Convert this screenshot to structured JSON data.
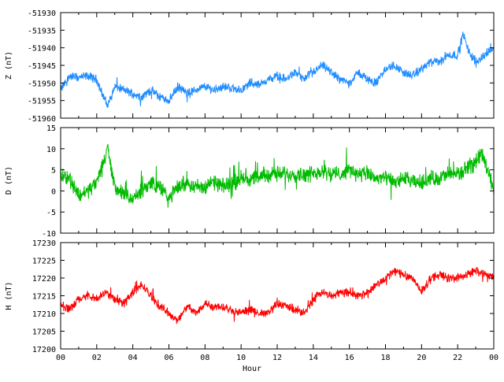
{
  "chart_data": {
    "type": "line",
    "xlabel": "Hour",
    "x_tick_labels": [
      "00",
      "02",
      "04",
      "06",
      "08",
      "10",
      "12",
      "14",
      "16",
      "18",
      "20",
      "22",
      "00"
    ],
    "xlim": [
      0,
      24
    ],
    "panels": [
      {
        "name": "Z",
        "ylabel": "Z (nT)",
        "ylim": [
          -51960,
          -51930
        ],
        "yticks": [
          -51960,
          -51955,
          -51950,
          -51945,
          -51940,
          -51935,
          -51930
        ],
        "color": "#1e8cff",
        "series": {
          "x": [
            0,
            0.5,
            1,
            1.5,
            2,
            2.3,
            2.6,
            3,
            3.5,
            4,
            4.5,
            5,
            5.5,
            6,
            6.5,
            7,
            7.5,
            8,
            8.5,
            9,
            9.5,
            10,
            10.5,
            11,
            11.5,
            12,
            12.5,
            13,
            13.5,
            14,
            14.5,
            15,
            15.5,
            16,
            16.5,
            17,
            17.5,
            18,
            18.5,
            19,
            19.5,
            20,
            20.5,
            21,
            21.5,
            22,
            22.3,
            22.6,
            23,
            23.5,
            24
          ],
          "values": [
            -51952,
            -51948,
            -51948.5,
            -51948,
            -51949,
            -51953,
            -51956.5,
            -51951,
            -51952,
            -51953,
            -51954,
            -51952,
            -51954,
            -51955,
            -51951,
            -51953,
            -51952,
            -51951,
            -51952,
            -51951,
            -51951.5,
            -51952,
            -51950,
            -51950.5,
            -51949,
            -51948,
            -51949,
            -51947,
            -51949,
            -51947,
            -51945,
            -51947,
            -51949,
            -51950,
            -51947,
            -51949,
            -51950,
            -51946,
            -51945,
            -51947,
            -51948,
            -51946,
            -51944,
            -51944,
            -51942,
            -51942,
            -51936,
            -51941,
            -51944,
            -51942,
            -51940
          ]
        }
      },
      {
        "name": "D",
        "ylabel": "D (nT)",
        "ylim": [
          -10,
          15
        ],
        "yticks": [
          -10,
          -5,
          0,
          5,
          10,
          15
        ],
        "color": "#00bb00",
        "series": {
          "x": [
            0,
            0.5,
            1,
            1.5,
            2,
            2.3,
            2.6,
            3,
            3.5,
            4,
            4.5,
            5,
            5.5,
            6,
            6.5,
            7,
            7.5,
            8,
            8.5,
            9,
            9.5,
            10,
            10.5,
            11,
            11.5,
            12,
            12.5,
            13,
            13.5,
            14,
            14.5,
            15,
            15.5,
            16,
            16.5,
            17,
            17.5,
            18,
            18.5,
            19,
            19.5,
            20,
            20.5,
            21,
            21.5,
            22,
            22.5,
            23,
            23.3,
            23.7,
            24
          ],
          "values": [
            4,
            3,
            -1,
            0,
            2,
            6,
            10,
            1,
            -1,
            -2,
            0,
            2,
            1,
            -2,
            1,
            2,
            1,
            1,
            2,
            1,
            2,
            3,
            3,
            3,
            4,
            4,
            4,
            4,
            4,
            4,
            5,
            4,
            4,
            5,
            4,
            4,
            3,
            3,
            2,
            3,
            2,
            2,
            3,
            3,
            4,
            4,
            5,
            7,
            9,
            5,
            0
          ]
        }
      },
      {
        "name": "H",
        "ylabel": "H (nT)",
        "ylim": [
          17200,
          17230
        ],
        "yticks": [
          17200,
          17205,
          17210,
          17215,
          17220,
          17225,
          17230
        ],
        "color": "#ff0000",
        "series": {
          "x": [
            0,
            0.5,
            1,
            1.5,
            2,
            2.5,
            3,
            3.5,
            4,
            4.5,
            5,
            5.5,
            6,
            6.5,
            7,
            7.5,
            8,
            8.5,
            9,
            9.5,
            10,
            10.5,
            11,
            11.5,
            12,
            12.5,
            13,
            13.5,
            14,
            14.5,
            15,
            15.5,
            16,
            16.5,
            17,
            17.5,
            18,
            18.5,
            19,
            19.5,
            20,
            20.5,
            21,
            21.5,
            22,
            22.5,
            23,
            23.5,
            24
          ],
          "values": [
            17213,
            17211,
            17214,
            17215,
            17214,
            17216,
            17214,
            17213,
            17216,
            17218,
            17215,
            17212,
            17210,
            17208,
            17212,
            17210,
            17213,
            17212,
            17212,
            17211,
            17210,
            17211,
            17210,
            17210,
            17213,
            17212,
            17211,
            17210,
            17214,
            17216,
            17215,
            17216,
            17216,
            17215,
            17216,
            17218,
            17220,
            17222,
            17221,
            17220,
            17216,
            17220,
            17221,
            17220,
            17220,
            17221,
            17222,
            17221,
            17220
          ]
        }
      }
    ]
  }
}
